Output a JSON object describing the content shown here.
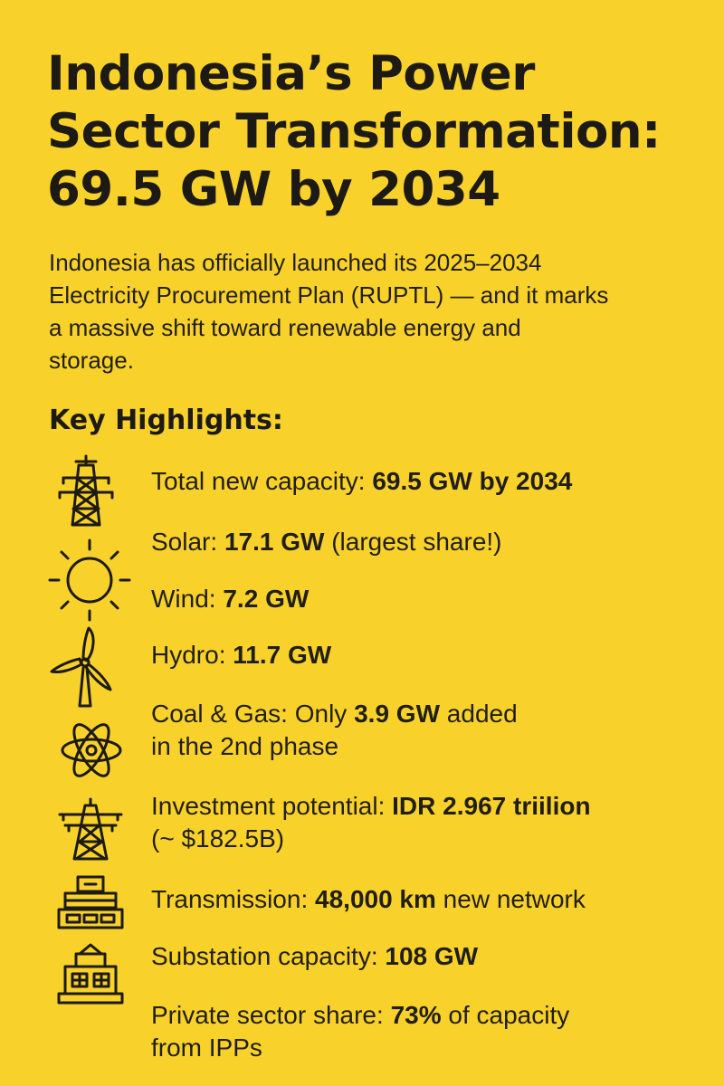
{
  "title": {
    "line1": "Indonesia’s Power",
    "line2": "Sector Transformation:",
    "line3": "69.5 GW by 2034"
  },
  "intro": {
    "line1": "Indonesia has officially launched its 2025–2034",
    "line2": "Electricity Procurement Plan (RUPTL) — and it marks",
    "line3": "a massive shift toward renewable energy and",
    "line4": "storage."
  },
  "section_heading": "Key Highlights:",
  "highlights": {
    "total": {
      "label": "Total new capacity: ",
      "value": "69.5 GW by 2034"
    },
    "solar": {
      "label": "Solar: ",
      "value": "17.1 GW",
      "suffix": " (largest share!)"
    },
    "wind": {
      "label": "Wind: ",
      "value": "7.2 GW"
    },
    "hydro": {
      "label": "Hydro: ",
      "value": "11.7 GW"
    },
    "coal_gas": {
      "label": "Coal & Gas: Only ",
      "value": "3.9 GW",
      "suffix": " added",
      "line2": "in the 2nd phase"
    },
    "investment": {
      "label": "Investment potential: ",
      "value": "IDR 2.967 triilion",
      "line2": "(~ $182.5B)"
    },
    "transmission": {
      "label": "Transmission: ",
      "value": "48,000 km",
      "suffix": " new network"
    },
    "substation": {
      "label": "Substation capacity: ",
      "value": "108 GW"
    },
    "private": {
      "label": "Private sector share: ",
      "value": "73%",
      "suffix": " of capacity",
      "line2": "from IPPs"
    }
  },
  "icons": [
    "transmission-tower-icon",
    "sun-icon",
    "wind-turbine-icon",
    "atom-icon",
    "power-pylon-icon",
    "stacked-blocks-icon",
    "substation-building-icon"
  ],
  "colors": {
    "background": "#f8d22b",
    "text": "#1d1a15"
  }
}
